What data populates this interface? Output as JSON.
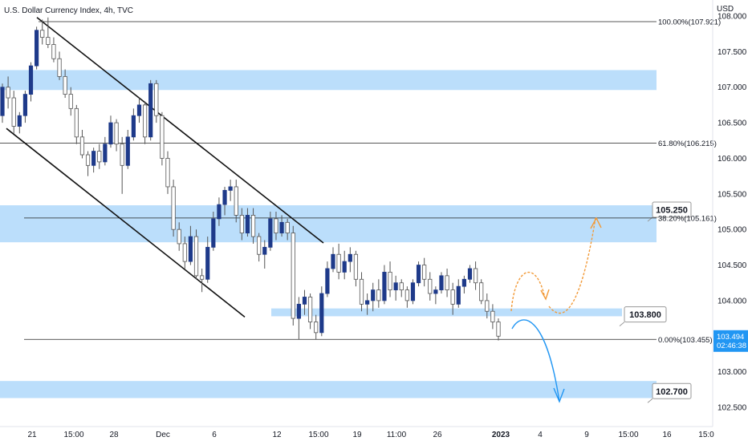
{
  "header": {
    "title": "U.S. Dollar Currency Index, 4h, TVC",
    "currency": "USD"
  },
  "chart_data": {
    "type": "candlestick",
    "title": "U.S. Dollar Currency Index, 4h, TVC",
    "ylabel": "USD",
    "ylim": [
      102.35,
      108.15
    ],
    "grid": false,
    "y_ticks": [
      "108.000",
      "107.500",
      "107.000",
      "106.500",
      "106.000",
      "105.500",
      "105.000",
      "104.500",
      "104.000",
      "103.000",
      "102.500"
    ],
    "x_ticks": [
      "21",
      "15:00",
      "28",
      "Dec",
      "6",
      "12",
      "15:00",
      "19",
      "11:00",
      "26",
      "2023",
      "4",
      "9",
      "15:00",
      "16",
      "15:0"
    ],
    "last_price": {
      "value": "103.494",
      "countdown": "02:46:38",
      "color": "#2196f3"
    },
    "fib_levels": [
      {
        "label": "100.00%(107.921)",
        "value": 107.921
      },
      {
        "label": "61.80%(106.215)",
        "value": 106.215
      },
      {
        "label": "38.20%(105.161)",
        "value": 105.161
      },
      {
        "label": "0.00%(103.455)",
        "value": 103.455
      }
    ],
    "zones": [
      {
        "low": 106.96,
        "high": 107.24,
        "label": null
      },
      {
        "low": 104.82,
        "high": 105.34,
        "label": "105.250",
        "label_value": 105.25
      },
      {
        "low": 103.78,
        "high": 103.89,
        "label": "103.800",
        "label_value": 103.8
      },
      {
        "low": 102.63,
        "high": 102.87,
        "label": "102.700",
        "label_value": 102.7
      }
    ],
    "channel": {
      "upper": {
        "start": 107.98,
        "end": 104.81
      },
      "lower": {
        "start": 106.42,
        "end": 103.77
      }
    },
    "projections": [
      {
        "color": "#f29a38",
        "direction": "up",
        "target": 105.16
      },
      {
        "color": "#2196f3",
        "direction": "down",
        "target": 102.58
      }
    ],
    "colors": {
      "up": "#1e3a8a",
      "down": "#ffffff",
      "wick": "#555555",
      "zone": "#bbdefb"
    },
    "candles": [
      [
        106.6,
        107.05,
        106.5,
        107.0
      ],
      [
        107.0,
        107.15,
        106.7,
        106.85
      ],
      [
        106.85,
        106.95,
        106.35,
        106.45
      ],
      [
        106.45,
        106.65,
        106.35,
        106.6
      ],
      [
        106.6,
        106.95,
        106.5,
        106.9
      ],
      [
        106.9,
        107.35,
        106.8,
        107.3
      ],
      [
        107.3,
        107.85,
        107.25,
        107.8
      ],
      [
        107.8,
        107.95,
        107.6,
        107.7
      ],
      [
        107.7,
        107.98,
        107.55,
        107.6
      ],
      [
        107.6,
        107.7,
        107.35,
        107.4
      ],
      [
        107.4,
        107.5,
        107.1,
        107.15
      ],
      [
        107.15,
        107.25,
        106.85,
        106.9
      ],
      [
        106.9,
        107.0,
        106.6,
        106.7
      ],
      [
        106.7,
        106.75,
        106.2,
        106.3
      ],
      [
        106.3,
        106.4,
        106.0,
        106.05
      ],
      [
        106.05,
        106.1,
        105.75,
        105.9
      ],
      [
        105.9,
        106.15,
        105.8,
        106.1
      ],
      [
        106.1,
        106.2,
        105.85,
        105.95
      ],
      [
        105.95,
        106.3,
        105.9,
        106.2
      ],
      [
        106.2,
        106.6,
        106.15,
        106.5
      ],
      [
        106.5,
        106.55,
        106.1,
        106.2
      ],
      [
        106.2,
        106.3,
        105.5,
        105.9
      ],
      [
        105.9,
        106.4,
        105.85,
        106.3
      ],
      [
        106.3,
        106.7,
        106.25,
        106.6
      ],
      [
        106.6,
        106.85,
        106.5,
        106.75
      ],
      [
        106.75,
        106.8,
        106.2,
        106.3
      ],
      [
        106.3,
        107.1,
        106.25,
        107.05
      ],
      [
        107.05,
        107.1,
        106.5,
        106.6
      ],
      [
        106.6,
        106.65,
        105.9,
        106.0
      ],
      [
        106.0,
        106.1,
        105.5,
        105.6
      ],
      [
        105.6,
        105.7,
        104.9,
        105.0
      ],
      [
        105.0,
        105.1,
        104.7,
        104.8
      ],
      [
        104.8,
        104.9,
        104.45,
        104.55
      ],
      [
        104.55,
        105.05,
        104.5,
        104.9
      ],
      [
        104.9,
        105.0,
        104.3,
        104.35
      ],
      [
        104.35,
        104.45,
        104.12,
        104.3
      ],
      [
        104.3,
        104.9,
        104.25,
        104.75
      ],
      [
        104.75,
        105.25,
        104.7,
        105.15
      ],
      [
        105.15,
        105.45,
        105.05,
        105.35
      ],
      [
        105.35,
        105.6,
        105.2,
        105.55
      ],
      [
        105.55,
        105.7,
        105.4,
        105.6
      ],
      [
        105.6,
        105.7,
        105.1,
        105.2
      ],
      [
        105.2,
        105.3,
        104.85,
        104.95
      ],
      [
        104.95,
        105.3,
        104.9,
        105.2
      ],
      [
        105.2,
        105.3,
        104.8,
        104.9
      ],
      [
        104.9,
        104.95,
        104.55,
        104.65
      ],
      [
        104.65,
        104.85,
        104.45,
        104.75
      ],
      [
        104.75,
        105.25,
        104.7,
        105.15
      ],
      [
        105.15,
        105.25,
        104.85,
        104.95
      ],
      [
        104.95,
        105.2,
        104.9,
        105.1
      ],
      [
        105.1,
        105.15,
        104.85,
        104.95
      ],
      [
        104.95,
        105.05,
        103.65,
        103.75
      ],
      [
        103.75,
        104.05,
        103.45,
        103.95
      ],
      [
        103.95,
        104.15,
        103.8,
        104.05
      ],
      [
        104.05,
        104.1,
        103.6,
        103.7
      ],
      [
        103.7,
        103.8,
        103.45,
        103.55
      ],
      [
        103.55,
        104.2,
        103.5,
        104.1
      ],
      [
        104.1,
        104.55,
        104.05,
        104.45
      ],
      [
        104.45,
        104.75,
        104.4,
        104.65
      ],
      [
        104.65,
        104.8,
        104.3,
        104.4
      ],
      [
        104.4,
        104.7,
        104.3,
        104.55
      ],
      [
        104.55,
        104.75,
        104.4,
        104.65
      ],
      [
        104.65,
        104.7,
        104.2,
        104.3
      ],
      [
        104.3,
        104.4,
        103.85,
        103.95
      ],
      [
        103.95,
        104.1,
        103.8,
        104.0
      ],
      [
        104.0,
        104.25,
        103.85,
        104.15
      ],
      [
        104.15,
        104.3,
        103.9,
        104.0
      ],
      [
        104.0,
        104.5,
        103.95,
        104.4
      ],
      [
        104.4,
        104.55,
        104.05,
        104.15
      ],
      [
        104.15,
        104.35,
        104.0,
        104.25
      ],
      [
        104.25,
        104.3,
        104.05,
        104.15
      ],
      [
        104.15,
        104.2,
        103.9,
        104.0
      ],
      [
        104.0,
        104.3,
        103.95,
        104.25
      ],
      [
        104.25,
        104.55,
        104.2,
        104.5
      ],
      [
        104.5,
        104.6,
        104.2,
        104.3
      ],
      [
        104.3,
        104.4,
        104.0,
        104.1
      ],
      [
        104.1,
        104.2,
        103.95,
        104.15
      ],
      [
        104.15,
        104.4,
        104.1,
        104.35
      ],
      [
        104.35,
        104.45,
        104.05,
        104.15
      ],
      [
        104.15,
        104.25,
        103.8,
        103.95
      ],
      [
        103.95,
        104.3,
        103.9,
        104.2
      ],
      [
        104.2,
        104.35,
        104.1,
        104.3
      ],
      [
        104.3,
        104.5,
        104.25,
        104.45
      ],
      [
        104.45,
        104.55,
        104.15,
        104.25
      ],
      [
        104.25,
        104.3,
        103.95,
        104.0
      ],
      [
        104.0,
        104.1,
        103.75,
        103.85
      ],
      [
        103.85,
        103.95,
        103.6,
        103.7
      ],
      [
        103.7,
        103.75,
        103.44,
        103.5
      ]
    ]
  },
  "labels": {
    "countdown": "02:46:38"
  }
}
